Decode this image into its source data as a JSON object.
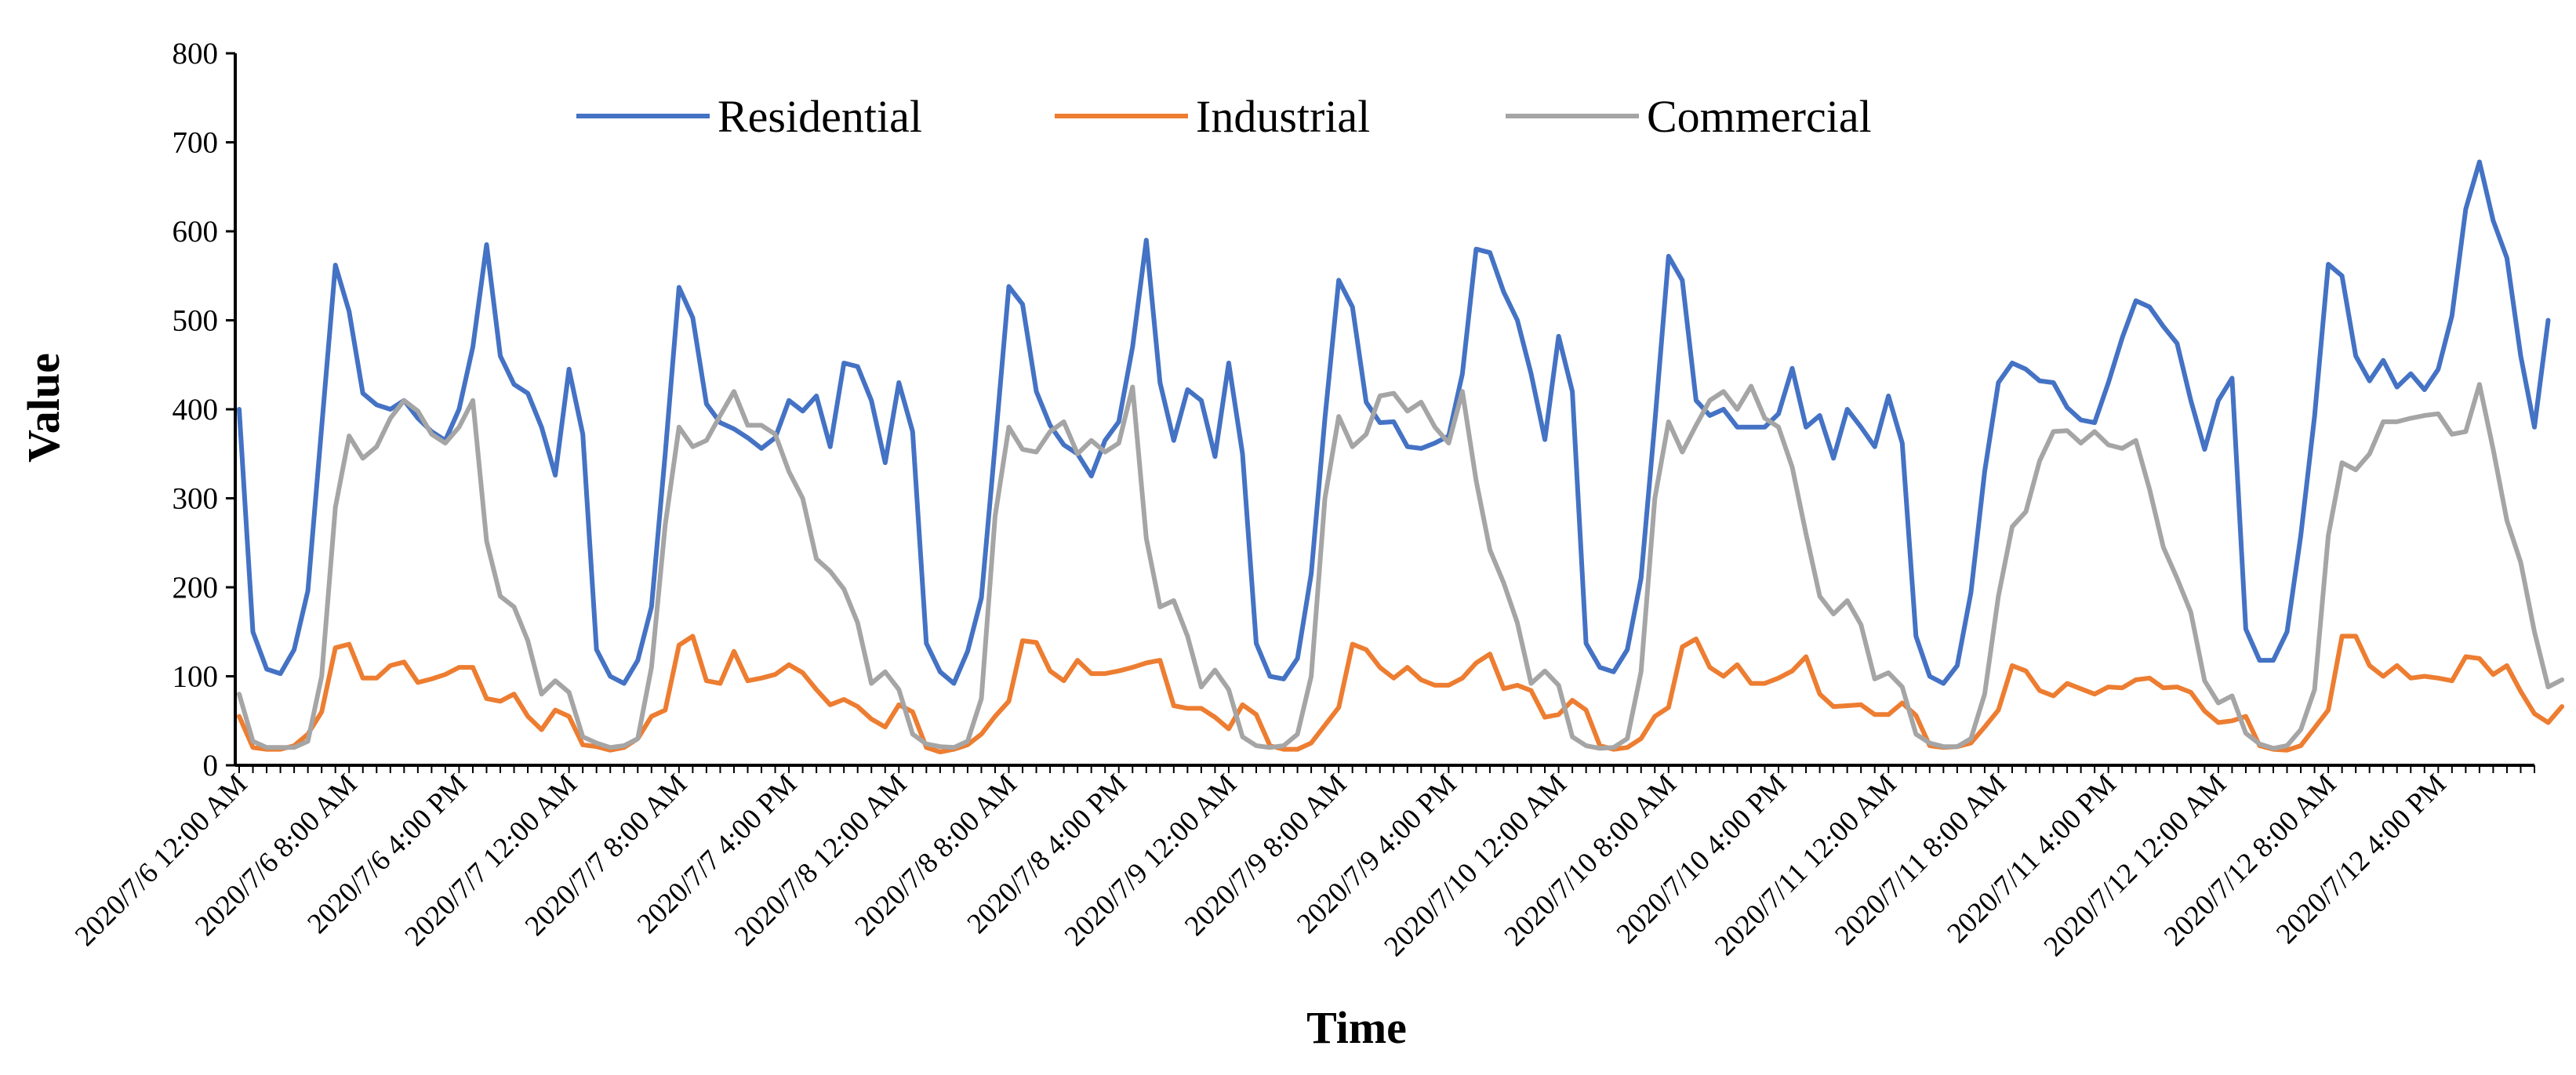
{
  "chart_data": {
    "type": "line",
    "title": "",
    "xlabel": "Time",
    "ylabel": "Value",
    "ylim": [
      0,
      800
    ],
    "yticks": [
      0,
      100,
      200,
      300,
      400,
      500,
      600,
      700,
      800
    ],
    "x_points": 168,
    "x_start_label": "2020/7/6 12:00 AM",
    "x_step": "1 hour",
    "xtick_positions": [
      0,
      8,
      16,
      24,
      32,
      40,
      48,
      56,
      64,
      72,
      80,
      88,
      96,
      104,
      112,
      120,
      128,
      136,
      144,
      152,
      160
    ],
    "xtick_labels": [
      "2020/7/6 12:00 AM",
      "2020/7/6 8:00 AM",
      "2020/7/6 4:00 PM",
      "2020/7/7 12:00 AM",
      "2020/7/7 8:00 AM",
      "2020/7/7 4:00 PM",
      "2020/7/8 12:00 AM",
      "2020/7/8 8:00 AM",
      "2020/7/8 4:00 PM",
      "2020/7/9 12:00 AM",
      "2020/7/9 8:00 AM",
      "2020/7/9 4:00 PM",
      "2020/7/10 12:00 AM",
      "2020/7/10 8:00 AM",
      "2020/7/10 4:00 PM",
      "2020/7/11 12:00 AM",
      "2020/7/11 8:00 AM",
      "2020/7/11 4:00 PM",
      "2020/7/12 12:00 AM",
      "2020/7/12 8:00 AM",
      "2020/7/12 4:00 PM"
    ],
    "legend_position": "top",
    "grid": false,
    "series": [
      {
        "name": "Residential",
        "color": "#4472C4",
        "values": [
          400,
          150,
          108,
          103,
          130,
          196,
          380,
          562,
          510,
          418,
          405,
          400,
          410,
          390,
          375,
          365,
          400,
          470,
          585,
          460,
          428,
          418,
          380,
          326,
          445,
          372,
          130,
          100,
          92,
          118,
          178,
          350,
          537,
          503,
          406,
          385,
          378,
          368,
          356,
          368,
          410,
          398,
          415,
          358,
          452,
          448,
          410,
          340,
          430,
          375,
          137,
          105,
          92,
          128,
          188,
          360,
          538,
          518,
          420,
          382,
          360,
          350,
          325,
          365,
          386,
          470,
          590,
          430,
          365,
          422,
          410,
          347,
          452,
          350,
          137,
          100,
          97,
          120,
          215,
          390,
          545,
          515,
          408,
          385,
          386,
          358,
          356,
          362,
          370,
          440,
          580,
          576,
          532,
          500,
          440,
          366,
          482,
          420,
          137,
          110,
          105,
          130,
          210,
          385,
          572,
          545,
          410,
          393,
          400,
          380,
          380,
          380,
          395,
          446,
          380,
          393,
          345,
          400,
          380,
          358,
          415,
          362,
          145,
          100,
          92,
          112,
          194,
          330,
          430,
          452,
          445,
          432,
          430,
          402,
          388,
          385,
          430,
          480,
          522,
          515,
          493,
          474,
          410,
          355,
          410,
          435,
          153,
          118,
          118,
          150,
          258,
          392,
          563,
          550,
          460,
          432,
          455,
          425,
          440,
          422,
          445,
          505,
          625,
          678,
          612,
          570,
          460,
          380,
          500
        ]
      },
      {
        "name": "Industrial",
        "color": "#ED7D31",
        "values": [
          55,
          20,
          18,
          18,
          22,
          35,
          60,
          132,
          136,
          98,
          98,
          112,
          116,
          93,
          97,
          102,
          110,
          110,
          75,
          72,
          80,
          55,
          40,
          62,
          55,
          23,
          21,
          17,
          20,
          30,
          55,
          62,
          135,
          145,
          95,
          92,
          128,
          95,
          98,
          102,
          113,
          104,
          85,
          68,
          74,
          66,
          52,
          43,
          68,
          60,
          20,
          15,
          18,
          23,
          35,
          55,
          72,
          140,
          138,
          106,
          95,
          118,
          103,
          103,
          106,
          110,
          115,
          118,
          67,
          64,
          64,
          54,
          41,
          68,
          57,
          22,
          18,
          18,
          25,
          45,
          65,
          136,
          130,
          110,
          98,
          110,
          96,
          90,
          90,
          98,
          115,
          125,
          86,
          90,
          84,
          54,
          57,
          73,
          62,
          22,
          18,
          20,
          30,
          55,
          65,
          133,
          142,
          110,
          100,
          113,
          92,
          92,
          98,
          106,
          122,
          80,
          66,
          67,
          68,
          57,
          57,
          70,
          56,
          22,
          20,
          21,
          25,
          43,
          62,
          112,
          106,
          84,
          78,
          92,
          86,
          80,
          88,
          87,
          96,
          98,
          87,
          88,
          82,
          61,
          48,
          50,
          55,
          22,
          18,
          17,
          22,
          42,
          62,
          145,
          145,
          112,
          100,
          112,
          98,
          100,
          98,
          95,
          122,
          120,
          102,
          112,
          83,
          58,
          48,
          66
        ]
      },
      {
        "name": "Commercial",
        "color": "#A5A5A5",
        "values": [
          80,
          27,
          20,
          20,
          20,
          27,
          100,
          290,
          370,
          345,
          358,
          390,
          410,
          398,
          372,
          362,
          380,
          410,
          252,
          190,
          178,
          140,
          80,
          95,
          82,
          32,
          25,
          20,
          22,
          30,
          110,
          270,
          380,
          358,
          365,
          393,
          420,
          382,
          382,
          372,
          330,
          300,
          232,
          218,
          198,
          160,
          92,
          105,
          85,
          35,
          24,
          21,
          20,
          27,
          75,
          280,
          380,
          355,
          352,
          375,
          386,
          350,
          365,
          352,
          362,
          425,
          255,
          178,
          185,
          145,
          88,
          107,
          85,
          32,
          22,
          20,
          22,
          35,
          100,
          300,
          392,
          358,
          372,
          415,
          418,
          398,
          408,
          380,
          362,
          420,
          320,
          242,
          205,
          160,
          92,
          106,
          90,
          32,
          22,
          19,
          20,
          30,
          105,
          300,
          386,
          352,
          382,
          410,
          420,
          400,
          426,
          390,
          380,
          335,
          260,
          190,
          170,
          185,
          158,
          97,
          104,
          88,
          35,
          25,
          21,
          21,
          30,
          80,
          190,
          268,
          285,
          342,
          375,
          376,
          362,
          375,
          360,
          356,
          365,
          310,
          245,
          210,
          172,
          95,
          70,
          78,
          36,
          24,
          19,
          22,
          40,
          85,
          258,
          340,
          332,
          350,
          386,
          386,
          390,
          393,
          395,
          372,
          375,
          428,
          355,
          275,
          228,
          150,
          88,
          96
        ]
      }
    ]
  }
}
